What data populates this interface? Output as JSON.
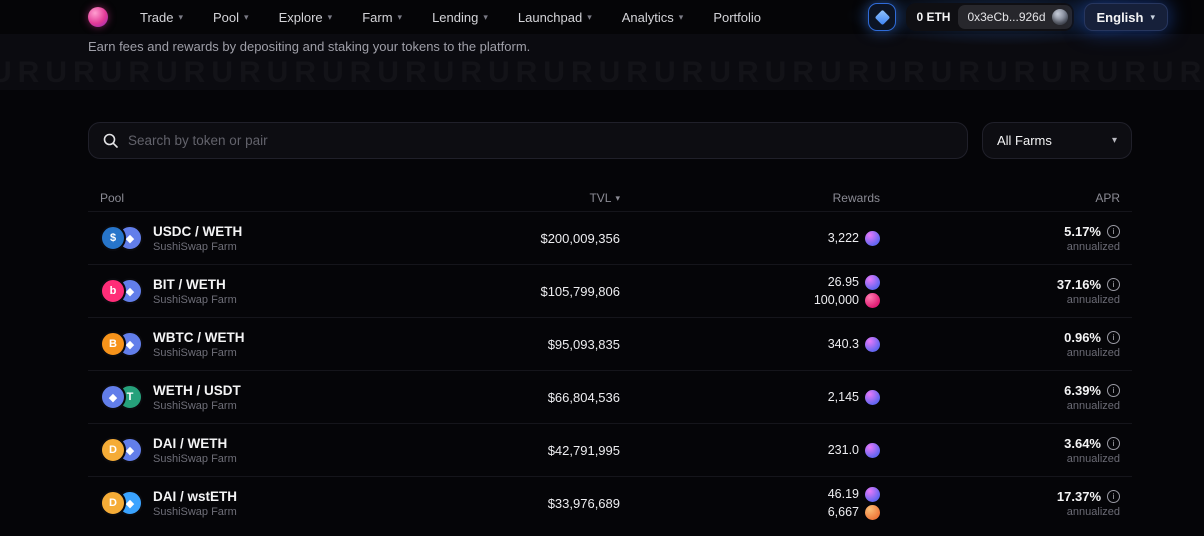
{
  "icons": {
    "chevron": "▾",
    "info": "i"
  },
  "nav": {
    "menu": [
      {
        "label": "Trade",
        "has_dropdown": true
      },
      {
        "label": "Pool",
        "has_dropdown": true
      },
      {
        "label": "Explore",
        "has_dropdown": true
      },
      {
        "label": "Farm",
        "has_dropdown": true
      },
      {
        "label": "Lending",
        "has_dropdown": true
      },
      {
        "label": "Launchpad",
        "has_dropdown": true
      },
      {
        "label": "Analytics",
        "has_dropdown": true
      },
      {
        "label": "Portfolio",
        "has_dropdown": false
      }
    ],
    "balance": "0 ETH",
    "wallet_address": "0x3eCb...926d",
    "language": "English"
  },
  "hero": {
    "subtitle": "Earn fees and rewards by depositing and staking your tokens to the platform.",
    "watermark": "URURURURURURURURURURURURURURURURURURURURURURURURURURURU"
  },
  "search": {
    "placeholder": "Search by token or pair"
  },
  "filter": {
    "label": "All Farms"
  },
  "table": {
    "columns": [
      "Pool",
      "TVL",
      "Rewards",
      "APR"
    ],
    "rows": [
      {
        "pair": "USDC / WETH",
        "farm": "SushiSwap Farm",
        "tvl": "$200,009,356",
        "tokens": [
          {
            "name": "USDC",
            "glyph": "$",
            "bg": "#2775CA"
          },
          {
            "name": "WETH",
            "glyph": "◆",
            "bg": "#627EEA"
          }
        ],
        "rewards": [
          {
            "amount": "3,222",
            "token": "SUSHI",
            "color": "#6366f1",
            "hi": "#e879f9"
          }
        ],
        "apr": "5.17%",
        "apr_note": "annualized"
      },
      {
        "pair": "BIT / WETH",
        "farm": "SushiSwap Farm",
        "tvl": "$105,799,806",
        "tokens": [
          {
            "name": "BIT",
            "glyph": "b",
            "bg": "#ff2d78"
          },
          {
            "name": "WETH",
            "glyph": "◆",
            "bg": "#627EEA"
          }
        ],
        "rewards": [
          {
            "amount": "26.95",
            "token": "SUSHI",
            "color": "#6366f1",
            "hi": "#e879f9"
          },
          {
            "amount": "100,000",
            "token": "BIT",
            "color": "#e11d74",
            "hi": "#ff7ab0"
          }
        ],
        "apr": "37.16%",
        "apr_note": "annualized"
      },
      {
        "pair": "WBTC / WETH",
        "farm": "SushiSwap Farm",
        "tvl": "$95,093,835",
        "tokens": [
          {
            "name": "WBTC",
            "glyph": "B",
            "bg": "#F7931A"
          },
          {
            "name": "WETH",
            "glyph": "◆",
            "bg": "#627EEA"
          }
        ],
        "rewards": [
          {
            "amount": "340.3",
            "token": "SUSHI",
            "color": "#6366f1",
            "hi": "#e879f9"
          }
        ],
        "apr": "0.96%",
        "apr_note": "annualized"
      },
      {
        "pair": "WETH / USDT",
        "farm": "SushiSwap Farm",
        "tvl": "$66,804,536",
        "tokens": [
          {
            "name": "WETH",
            "glyph": "◆",
            "bg": "#627EEA"
          },
          {
            "name": "USDT",
            "glyph": "T",
            "bg": "#26A17B"
          }
        ],
        "rewards": [
          {
            "amount": "2,145",
            "token": "SUSHI",
            "color": "#6366f1",
            "hi": "#e879f9"
          }
        ],
        "apr": "6.39%",
        "apr_note": "annualized"
      },
      {
        "pair": "DAI / WETH",
        "farm": "SushiSwap Farm",
        "tvl": "$42,791,995",
        "tokens": [
          {
            "name": "DAI",
            "glyph": "D",
            "bg": "#F5AC37"
          },
          {
            "name": "WETH",
            "glyph": "◆",
            "bg": "#627EEA"
          }
        ],
        "rewards": [
          {
            "amount": "231.0",
            "token": "SUSHI",
            "color": "#6366f1",
            "hi": "#e879f9"
          }
        ],
        "apr": "3.64%",
        "apr_note": "annualized"
      },
      {
        "pair": "DAI / wstETH",
        "farm": "SushiSwap Farm",
        "tvl": "$33,976,689",
        "tokens": [
          {
            "name": "DAI",
            "glyph": "D",
            "bg": "#F5AC37"
          },
          {
            "name": "wstETH",
            "glyph": "◆",
            "bg": "#3AA3FF"
          }
        ],
        "rewards": [
          {
            "amount": "46.19",
            "token": "SUSHI",
            "color": "#6366f1",
            "hi": "#e879f9"
          },
          {
            "amount": "6,667",
            "token": "LDO",
            "color": "#ef7a3c",
            "hi": "#fbbf77"
          }
        ],
        "apr": "17.37%",
        "apr_note": "annualized"
      }
    ]
  }
}
